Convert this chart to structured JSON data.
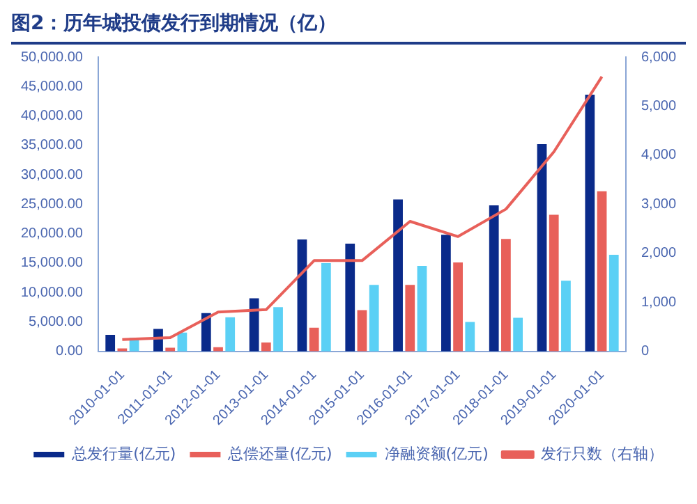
{
  "chart_data": {
    "type": "bar",
    "title": "图2：历年城投债发行到期情况（亿）",
    "categories": [
      "2010-01-01",
      "2011-01-01",
      "2012-01-01",
      "2013-01-01",
      "2014-01-01",
      "2015-01-01",
      "2016-01-01",
      "2017-01-01",
      "2018-01-01",
      "2019-01-01",
      "2020-01-01"
    ],
    "series": [
      {
        "name": "总发行量(亿元)",
        "color": "#0a2a8a",
        "values": [
          2800,
          3800,
          6500,
          9000,
          19000,
          18300,
          25800,
          19800,
          24800,
          35200,
          43600
        ]
      },
      {
        "name": "总偿还量(亿元)",
        "color": "#e8605a",
        "values": [
          500,
          600,
          700,
          1500,
          4000,
          7000,
          11300,
          15100,
          19100,
          23200,
          27200
        ]
      },
      {
        "name": "净融资额(亿元)",
        "color": "#5bd0f5",
        "values": [
          2300,
          3200,
          5800,
          7500,
          15000,
          11300,
          14500,
          5000,
          5700,
          12000,
          16400
        ]
      },
      {
        "name": "发行只数（右轴）",
        "type": "line",
        "axis": "y2",
        "color": "#e8605a",
        "values": [
          240,
          280,
          800,
          850,
          1850,
          1850,
          2650,
          2340,
          2900,
          4070,
          5600
        ]
      }
    ],
    "ylim": [
      0,
      50000
    ],
    "yticks": [
      {
        "value": 0,
        "label": "0.00"
      },
      {
        "value": 5000,
        "label": "5,000.00"
      },
      {
        "value": 10000,
        "label": "10,000.00"
      },
      {
        "value": 15000,
        "label": "15,000.00"
      },
      {
        "value": 20000,
        "label": "20,000.00"
      },
      {
        "value": 25000,
        "label": "25,000.00"
      },
      {
        "value": 30000,
        "label": "30,000.00"
      },
      {
        "value": 35000,
        "label": "35,000.00"
      },
      {
        "value": 40000,
        "label": "40,000.00"
      },
      {
        "value": 45000,
        "label": "45,000.00"
      },
      {
        "value": 50000,
        "label": "50,000.00"
      }
    ],
    "y2lim": [
      0,
      6000
    ],
    "y2ticks": [
      0,
      {
        "value": 1000,
        "label": "1,000"
      },
      {
        "value": 2000,
        "label": "2,000"
      },
      {
        "value": 3000,
        "label": "3,000"
      },
      {
        "value": 4000,
        "label": "4,000"
      },
      {
        "value": 5000,
        "label": "5,000"
      },
      {
        "value": 6000,
        "label": "6,000"
      }
    ],
    "grid": false,
    "legend": "bottom",
    "marker": "none"
  }
}
